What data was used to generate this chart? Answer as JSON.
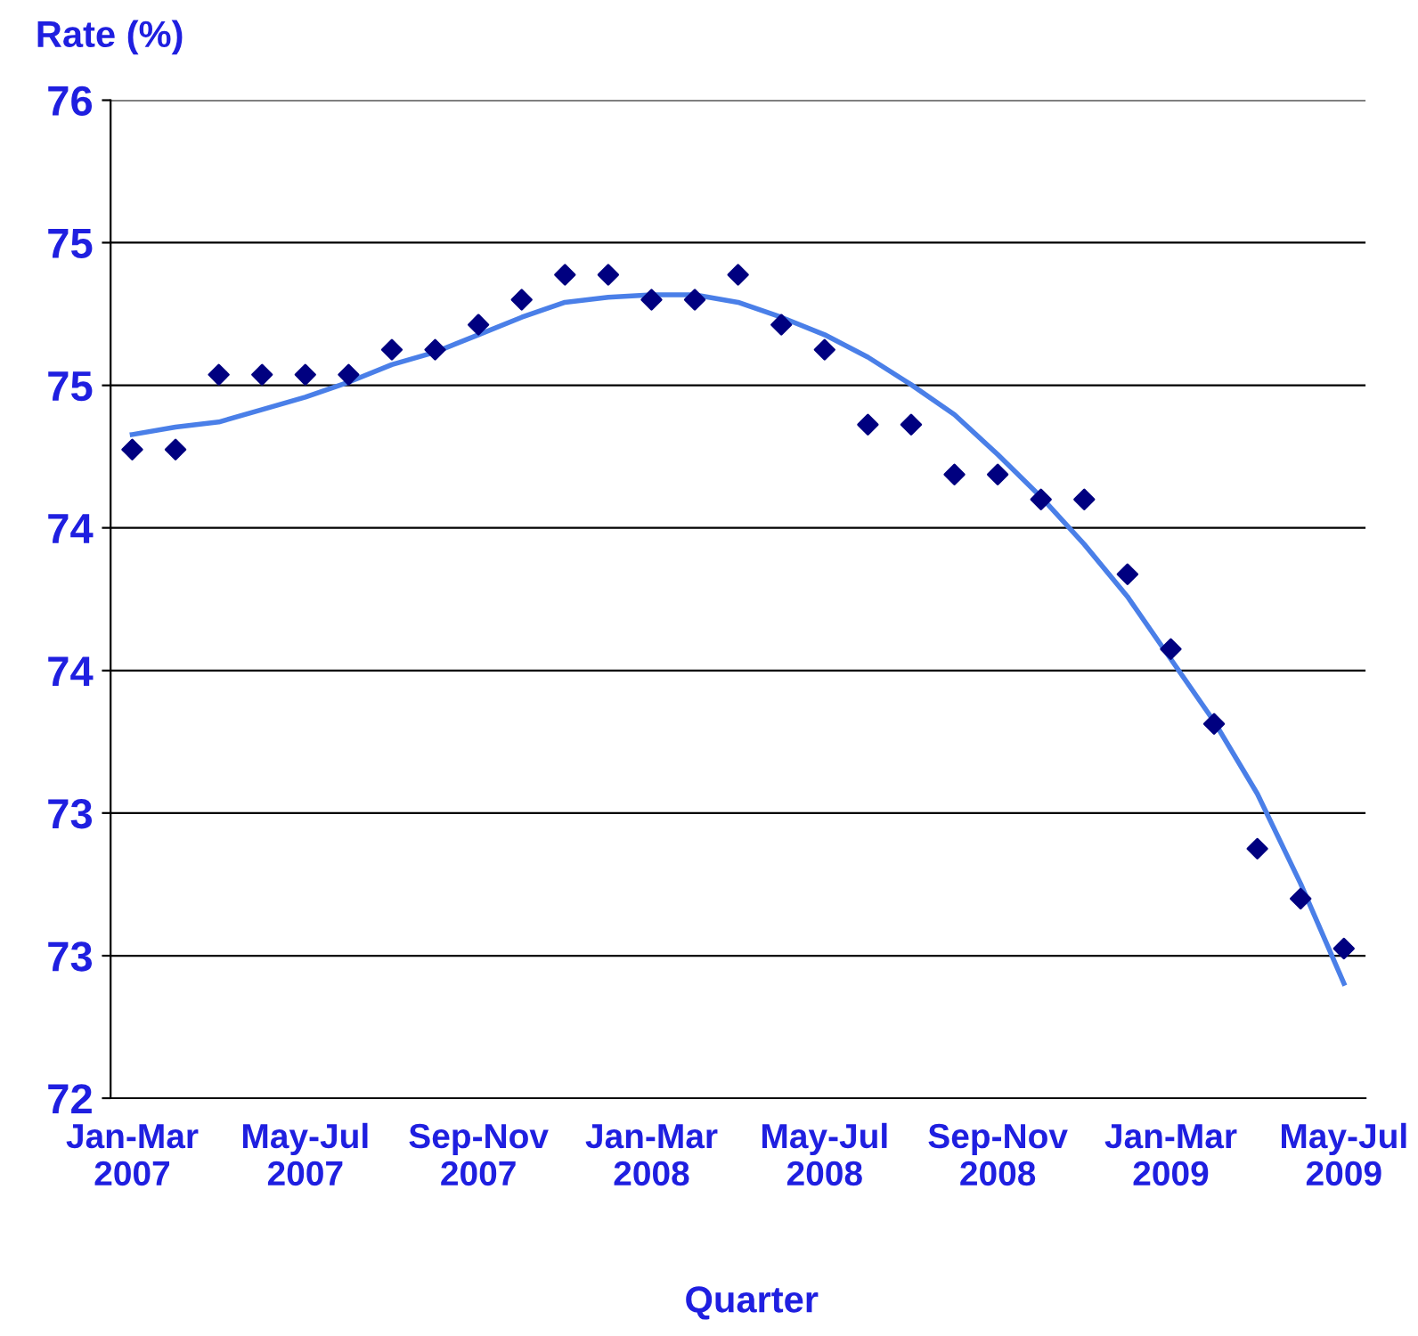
{
  "chart_data": {
    "type": "scatter",
    "xlabel": "Quarter",
    "ylabel": "Rate (%)",
    "categories": [
      "Jan-Mar\n2007",
      null,
      null,
      null,
      "May-Jul\n2007",
      null,
      null,
      null,
      "Sep-Nov\n2007",
      null,
      null,
      null,
      "Jan-Mar\n2008",
      null,
      null,
      null,
      "May-Jul\n2008",
      null,
      null,
      null,
      "Sep-Nov\n2008",
      null,
      null,
      null,
      "Jan-Mar\n2009",
      null,
      null,
      null,
      "May-Jul\n2009"
    ],
    "series": [
      {
        "color": "#000080",
        "marker": "diamond",
        "values": [
          74.6,
          74.6,
          74.9,
          74.9,
          74.9,
          74.9,
          75.0,
          75.0,
          75.1,
          75.2,
          75.3,
          75.3,
          75.2,
          75.2,
          75.3,
          75.1,
          75.0,
          74.7,
          74.7,
          74.5,
          74.5,
          74.4,
          74.4,
          74.1,
          73.8,
          73.5,
          73.0,
          72.8,
          72.6
        ]
      },
      {
        "type": "line",
        "color": "#4a7fe8",
        "line_style": "solid",
        "marker": "none",
        "values": [
          74.66,
          74.69,
          74.71,
          74.76,
          74.81,
          74.87,
          74.94,
          74.99,
          75.06,
          75.13,
          75.19,
          75.21,
          75.22,
          75.22,
          75.19,
          75.13,
          75.06,
          74.97,
          74.86,
          74.74,
          74.58,
          74.41,
          74.22,
          74.01,
          73.76,
          73.51,
          73.22,
          72.86,
          72.46
        ]
      }
    ],
    "ylim": [
      72,
      76
    ],
    "yticks": [
      72,
      {
        "value": 72.571,
        "label": "73"
      },
      {
        "value": 73.143,
        "label": "73"
      },
      {
        "value": 73.714,
        "label": "74"
      },
      {
        "value": 74.286,
        "label": "74"
      },
      {
        "value": 74.857,
        "label": "75"
      },
      {
        "value": 75.429,
        "label": "75"
      },
      76
    ],
    "grid": "y",
    "legend": false
  }
}
